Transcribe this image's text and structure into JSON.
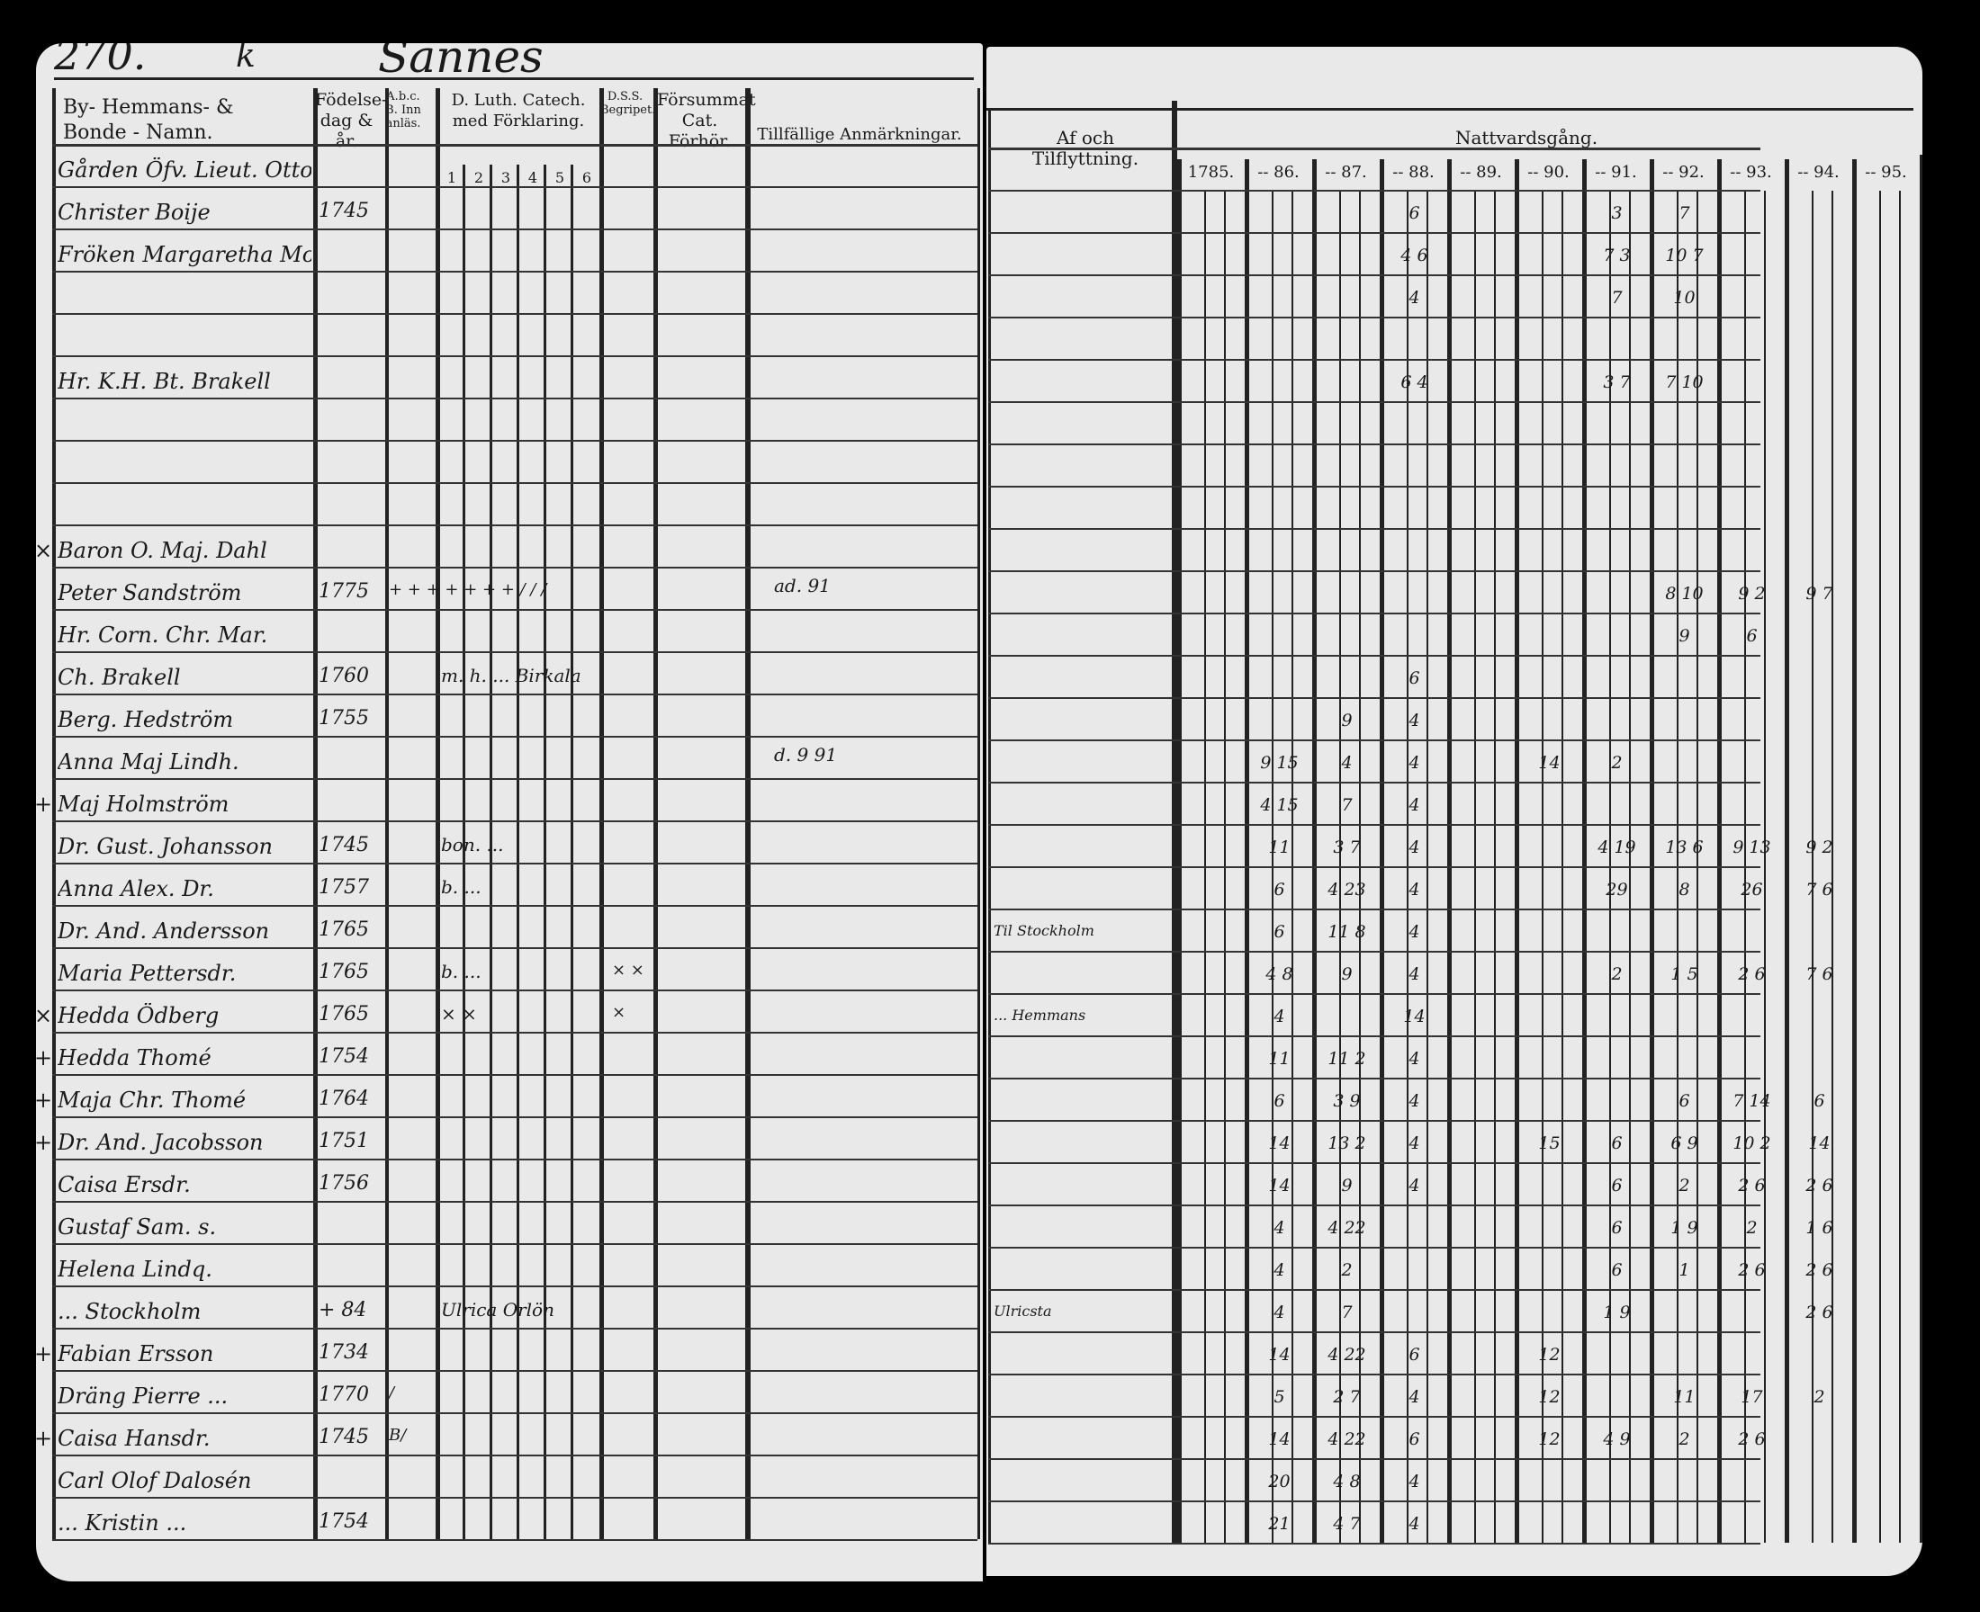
{
  "left_page": {
    "page_number": "270.",
    "letter": "k",
    "place": "Sannes",
    "headers": {
      "name": "By- Hemmans- & Bonde - Namn.",
      "birth": "Födelse-dag & år.",
      "abc": "A.b.c.B. Innanläs.",
      "catechism": "D. Luth. Catech. med Förklaring.",
      "catechism_parts": [
        "1",
        "2",
        "3",
        "4",
        "5",
        "6"
      ],
      "dss": "D.S.S. Begripet.",
      "neglected": "Försummat Cat. Förhör.",
      "remarks": "Tillfällige Anmärkningar."
    }
  },
  "right_page": {
    "headers": {
      "moving": "Af och Tilflyttning.",
      "communion": "Nattvardsgång.",
      "years": [
        "1785.",
        "-- 86.",
        "-- 87.",
        "-- 88.",
        "-- 89.",
        "-- 90.",
        "-- 91.",
        "-- 92.",
        "-- 93.",
        "-- 94.",
        "-- 95."
      ]
    }
  },
  "rows": [
    {
      "name": "Gården  Öfv. Lieut. Otto",
      "birth": "",
      "comm": {}
    },
    {
      "name": "Christer Boije",
      "birth": "1745",
      "comm": {
        "3": "6",
        "6": "3",
        "7": "7"
      }
    },
    {
      "name": "Fröken Margaretha Montgomerie",
      "birth": "",
      "comm": {
        "3": "4 6",
        "6": "7 3",
        "7": "10 7"
      }
    },
    {
      "name": "",
      "birth": "",
      "comm": {
        "3": "4",
        "6": "7",
        "7": "10"
      }
    },
    {
      "name": "",
      "birth": "",
      "comm": {}
    },
    {
      "name": "Hr. K.H. Bt. Brakell",
      "birth": "",
      "comm": {
        "3": "6 4",
        "6": "3 7",
        "7": "7 10"
      }
    },
    {
      "name": "",
      "birth": "",
      "comm": {}
    },
    {
      "name": "",
      "birth": "",
      "comm": {}
    },
    {
      "name": "",
      "birth": "",
      "comm": {}
    },
    {
      "name": "Baron O. Maj. Dahl",
      "birth": "",
      "mark": "×",
      "comm": {}
    },
    {
      "name": "Peter Sandström",
      "birth": "1775",
      "abc": "+ + + + + + + / / /",
      "remark": "ad. 91",
      "comm": {
        "7": "8 10",
        "8": "9 2",
        "9": "9 7"
      }
    },
    {
      "name": "Hr. Corn. Chr. Mar.",
      "birth": "",
      "comm": {
        "7": "9",
        "8": "6"
      }
    },
    {
      "name": "Ch. Brakell",
      "birth": "1760",
      "catech": "m. h. ... Birkala",
      "comm": {
        "3": "6"
      }
    },
    {
      "name": "Berg. Hedström",
      "birth": "1755",
      "comm": {
        "2": "9",
        "3": "4"
      }
    },
    {
      "name": "Anna Maj Lindh.",
      "birth": "",
      "remark": "d. 9 91",
      "comm": {
        "1": "9 15",
        "2": "4",
        "3": "4",
        "5": "14",
        "6": "2"
      }
    },
    {
      "name": "Maj Holmström",
      "birth": "",
      "mark": "+",
      "comm": {
        "1": "4 15",
        "2": "7",
        "3": "4"
      }
    },
    {
      "name": "Dr. Gust. Johansson",
      "birth": "1745",
      "catech": "bon. ...",
      "comm": {
        "1": "11",
        "2": "3 7",
        "3": "4",
        "6": "4 19",
        "7": "13 6",
        "8": "9 13",
        "9": "9 2"
      }
    },
    {
      "name": "Anna Alex. Dr.",
      "birth": "1757",
      "catech": "b. ...",
      "comm": {
        "1": "6",
        "2": "4 23",
        "3": "4",
        "6": "29",
        "7": "8",
        "8": "26",
        "9": "7 6"
      }
    },
    {
      "name": "Dr. And. Andersson",
      "birth": "1765",
      "move": "Til Stockholm",
      "comm": {
        "1": "6",
        "2": "11 8",
        "3": "4"
      }
    },
    {
      "name": "Maria Pettersdr.",
      "birth": "1765",
      "catech": "b. ...",
      "dss": "× ×",
      "comm": {
        "1": "4 8",
        "2": "9",
        "3": "4",
        "6": "2",
        "7": "1 5",
        "8": "2 6",
        "9": "7 6"
      }
    },
    {
      "name": "Hedda Ödberg",
      "birth": "1765",
      "catech": "× ×",
      "dss": "×",
      "mark": "×",
      "move": "... Hemmans",
      "comm": {
        "1": "4",
        "3": "14"
      }
    },
    {
      "name": "Hedda Thomé",
      "birth": "1754",
      "mark": "+",
      "comm": {
        "1": "11",
        "2": "11 2",
        "3": "4"
      }
    },
    {
      "name": "Maja Chr. Thomé",
      "birth": "1764",
      "mark": "+",
      "comm": {
        "1": "6",
        "2": "3 9",
        "3": "4",
        "7": "6",
        "8": "7 14",
        "9": "6"
      }
    },
    {
      "name": "Dr. And. Jacobsson",
      "birth": "1751",
      "mark": "+",
      "comm": {
        "1": "14",
        "2": "13 2",
        "3": "4",
        "5": "15",
        "6": "6",
        "7": "6 9",
        "8": "10 2",
        "9": "14"
      }
    },
    {
      "name": "Caisa Ersdr.",
      "birth": "1756",
      "comm": {
        "1": "14",
        "2": "9",
        "3": "4",
        "6": "6",
        "7": "2",
        "8": "2 6",
        "9": "2 6"
      }
    },
    {
      "name": "Gustaf Sam. s.",
      "birth": "",
      "comm": {
        "1": "4",
        "2": "4 22",
        "6": "6",
        "7": "1 9",
        "8": "2",
        "9": "1 6"
      }
    },
    {
      "name": "Helena Lindq.",
      "birth": "",
      "comm": {
        "1": "4",
        "2": "2",
        "6": "6",
        "7": "1",
        "8": "2 6",
        "9": "2 6"
      }
    },
    {
      "name": "... Stockholm",
      "birth": "+ 84",
      "catech": "Ulrica Orlön",
      "move": "Ulricsta",
      "comm": {
        "1": "4",
        "2": "7",
        "6": "1 9",
        "9": "2 6"
      }
    },
    {
      "name": "Fabian Ersson",
      "birth": "1734",
      "mark": "+",
      "comm": {
        "1": "14",
        "2": "4 22",
        "3": "6",
        "5": "12"
      }
    },
    {
      "name": "Dräng Pierre ...",
      "birth": "1770",
      "abc": "/",
      "comm": {
        "1": "5",
        "2": "2 7",
        "3": "4",
        "5": "12",
        "7": "11",
        "8": "17",
        "9": "2"
      }
    },
    {
      "name": "Caisa Hansdr.",
      "birth": "1745",
      "abc": "B/",
      "mark": "+",
      "comm": {
        "1": "14",
        "2": "4 22",
        "3": "6",
        "5": "12",
        "6": "4 9",
        "7": "2",
        "8": "2 6"
      }
    },
    {
      "name": "Carl Olof Dalosén",
      "birth": "",
      "comm": {
        "1": "20",
        "2": "4 8",
        "3": "4"
      }
    },
    {
      "name": "... Kristin ...",
      "birth": "1754",
      "comm": {
        "1": "21",
        "2": "4 7",
        "3": "4"
      }
    }
  ],
  "colors": {
    "paper": "#e9e9e9",
    "ink": "#1a1a1a",
    "background": "#000000"
  }
}
